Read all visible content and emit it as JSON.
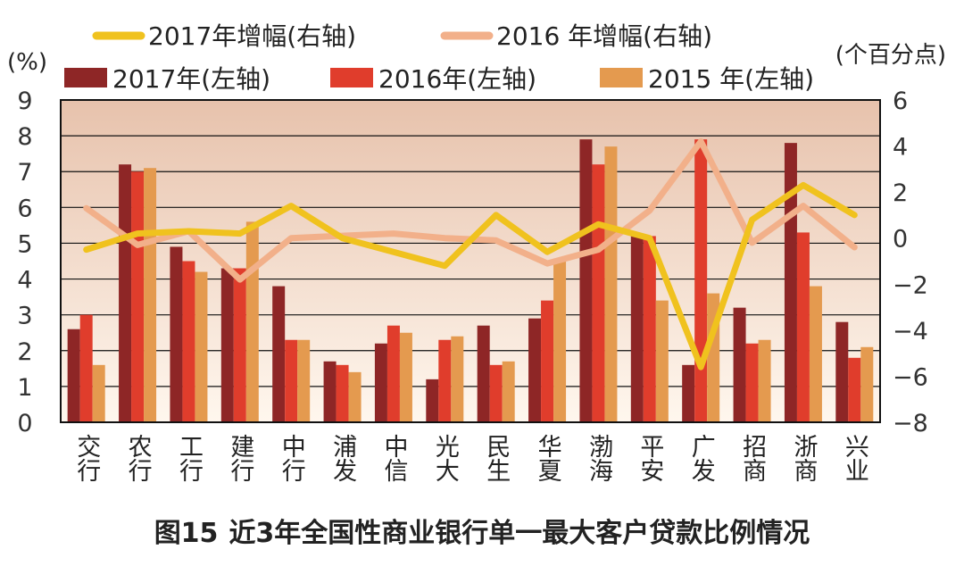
{
  "chart_data": {
    "type": "bar",
    "title": "",
    "categories": [
      "交行",
      "农行",
      "工行",
      "建行",
      "中行",
      "浦发",
      "中信",
      "光大",
      "民生",
      "华夏",
      "渤海",
      "平安",
      "广发",
      "招商",
      "浙商",
      "兴业"
    ],
    "series": [
      {
        "name": "2017年(左轴)",
        "kind": "bar",
        "axis": "left",
        "color": "#8e2626",
        "values": [
          2.6,
          7.2,
          4.9,
          4.3,
          3.8,
          1.7,
          2.2,
          1.2,
          2.7,
          2.9,
          7.9,
          5.2,
          1.6,
          3.2,
          7.8,
          2.8
        ]
      },
      {
        "name": "2016年(左轴)",
        "kind": "bar",
        "axis": "left",
        "color": "#e03d2c",
        "values": [
          3.0,
          7.0,
          4.5,
          4.3,
          2.3,
          1.6,
          2.7,
          2.3,
          1.6,
          3.4,
          7.2,
          5.2,
          7.9,
          2.2,
          5.3,
          1.8
        ]
      },
      {
        "name": "2015 年(左轴)",
        "kind": "bar",
        "axis": "left",
        "color": "#e49a4f",
        "values": [
          1.6,
          7.1,
          4.2,
          5.6,
          2.3,
          1.4,
          2.5,
          2.4,
          1.7,
          4.5,
          7.7,
          3.4,
          3.6,
          2.3,
          3.8,
          2.1
        ]
      },
      {
        "name": "2017年增幅(右轴)",
        "kind": "line",
        "axis": "right",
        "color": "#f0c21e",
        "values": [
          -0.5,
          0.2,
          0.3,
          0.2,
          1.4,
          0.0,
          -0.6,
          -1.2,
          1.0,
          -0.6,
          0.6,
          0.0,
          -5.6,
          0.8,
          2.3,
          1.0
        ]
      },
      {
        "name": "2016 年增幅(右轴)",
        "kind": "line",
        "axis": "right",
        "color": "#f2b08a",
        "values": [
          1.3,
          -0.3,
          0.3,
          -1.8,
          0.0,
          0.1,
          0.2,
          0.0,
          -0.1,
          -1.1,
          -0.5,
          1.2,
          4.2,
          -0.2,
          1.4,
          -0.4
        ]
      }
    ],
    "y_left": {
      "label": "(%)",
      "ylim": [
        0,
        9
      ],
      "ticks": [
        "0",
        "1",
        "2",
        "3",
        "4",
        "5",
        "6",
        "7",
        "8",
        "9"
      ]
    },
    "y_right": {
      "label": "(个百分点)",
      "ylim": [
        -8,
        6
      ],
      "ticks": [
        "−8",
        "−6",
        "−4",
        "−2",
        "0",
        "2",
        "4",
        "6"
      ]
    },
    "grid": true,
    "legend_placement": "top",
    "colors": {
      "background_top": "#e7c2ac",
      "background_bottom": "#fff7ee",
      "grid": "#111111"
    }
  },
  "caption": {
    "figure_no": "图15",
    "text": "近3年全国性商业银行单一最大客户贷款比例情况"
  }
}
